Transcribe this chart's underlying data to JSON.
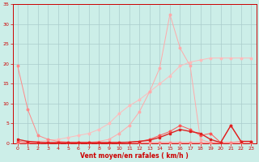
{
  "background_color": "#cceee8",
  "grid_color": "#aacccc",
  "xlabel": "Vent moyen/en rafales ( km/h )",
  "xlabel_color": "#cc0000",
  "xlim": [
    -0.5,
    23.5
  ],
  "ylim": [
    0,
    35
  ],
  "yticks": [
    0,
    5,
    10,
    15,
    20,
    25,
    30,
    35
  ],
  "xticks": [
    0,
    1,
    2,
    3,
    4,
    5,
    6,
    7,
    8,
    9,
    10,
    11,
    12,
    13,
    14,
    15,
    16,
    17,
    18,
    19,
    20,
    21,
    22,
    23
  ],
  "tick_color": "#cc0000",
  "line_sharp_peak_x": [
    0,
    1,
    2,
    3,
    4,
    5,
    6,
    7,
    8,
    9,
    10,
    11,
    12,
    13,
    14,
    15,
    16,
    17,
    18,
    19,
    20,
    21,
    22,
    23
  ],
  "line_sharp_peak_y": [
    0.3,
    0.2,
    0.2,
    0.2,
    0.2,
    0.2,
    0.2,
    0.2,
    0.5,
    1.0,
    2.5,
    4.5,
    8.0,
    13.0,
    19.0,
    32.5,
    24.0,
    19.5,
    1.0,
    0.2,
    0.2,
    0.2,
    0.2,
    0.2
  ],
  "line_sharp_peak_color": "#ffaaaa",
  "line_linear_x": [
    0,
    1,
    2,
    3,
    4,
    5,
    6,
    7,
    8,
    9,
    10,
    11,
    12,
    13,
    14,
    15,
    16,
    17,
    18,
    19,
    20,
    21,
    22,
    23
  ],
  "line_linear_y": [
    0.3,
    0.3,
    0.5,
    0.8,
    1.0,
    1.5,
    2.0,
    2.5,
    3.5,
    5.0,
    7.5,
    9.5,
    11.0,
    13.0,
    15.0,
    17.0,
    19.5,
    20.5,
    21.0,
    21.5,
    21.5,
    21.5,
    21.5,
    21.5
  ],
  "line_linear_color": "#ffbbbb",
  "line_drop_x": [
    0,
    1,
    2,
    3,
    4,
    5,
    6,
    7,
    8,
    9,
    10,
    11,
    12,
    13,
    14,
    15,
    16,
    17,
    18,
    19,
    20,
    21,
    22,
    23
  ],
  "line_drop_y": [
    19.5,
    8.5,
    2.0,
    1.0,
    0.5,
    0.3,
    0.2,
    0.2,
    0.2,
    0.2,
    0.2,
    0.2,
    0.2,
    0.2,
    0.2,
    0.2,
    0.2,
    0.2,
    0.2,
    0.2,
    0.2,
    0.2,
    0.5,
    0.5
  ],
  "line_drop_color": "#ff8888",
  "line_low1_x": [
    0,
    1,
    2,
    3,
    4,
    5,
    6,
    7,
    8,
    9,
    10,
    11,
    12,
    13,
    14,
    15,
    16,
    17,
    18,
    19,
    20,
    21,
    22,
    23
  ],
  "line_low1_y": [
    1.0,
    0.5,
    0.3,
    0.2,
    0.2,
    0.2,
    0.2,
    0.2,
    0.2,
    0.2,
    0.2,
    0.3,
    0.5,
    0.8,
    1.5,
    2.5,
    3.5,
    3.0,
    2.5,
    1.0,
    0.2,
    4.5,
    0.5,
    0.5
  ],
  "line_low1_color": "#dd2222",
  "line_low2_x": [
    0,
    1,
    2,
    3,
    4,
    5,
    6,
    7,
    8,
    9,
    10,
    11,
    12,
    13,
    14,
    15,
    16,
    17,
    18,
    19,
    20,
    21,
    22,
    23
  ],
  "line_low2_y": [
    0.5,
    0.2,
    0.2,
    0.2,
    0.2,
    0.2,
    0.2,
    0.2,
    0.2,
    0.2,
    0.3,
    0.3,
    0.5,
    1.0,
    2.0,
    3.0,
    4.5,
    3.5,
    2.0,
    2.5,
    0.2,
    4.5,
    0.5,
    0.5
  ],
  "line_low2_color": "#ff5555",
  "line_low3_x": [
    0,
    1,
    2,
    3,
    4,
    5,
    6,
    7,
    8,
    9,
    10,
    11,
    12,
    13,
    14,
    15,
    16,
    17,
    18,
    19,
    20,
    21,
    22,
    23
  ],
  "line_low3_y": [
    0.2,
    0.2,
    0.2,
    0.2,
    0.2,
    0.2,
    0.2,
    0.2,
    0.2,
    0.2,
    0.2,
    0.2,
    0.2,
    0.2,
    0.2,
    0.2,
    0.2,
    0.2,
    0.2,
    0.2,
    0.2,
    0.2,
    0.2,
    0.5
  ],
  "line_low3_color": "#ffcccc"
}
